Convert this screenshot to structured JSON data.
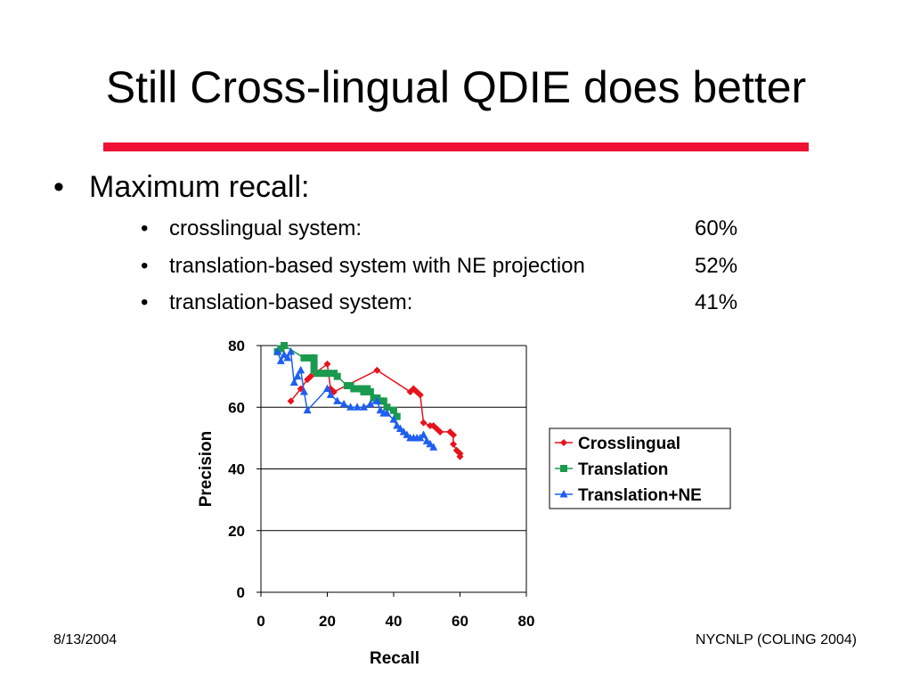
{
  "slide": {
    "title": "Still Cross-lingual QDIE does better",
    "bullet": "Maximum recall:",
    "subs": [
      {
        "label": "crosslingual system:",
        "value": "60%"
      },
      {
        "label": "translation-based system with NE projection",
        "value": "52%"
      },
      {
        "label": "translation-based system:",
        "value": "41%"
      }
    ],
    "footer_left": "8/13/2004",
    "footer_right": "NYCNLP (COLING 2004)",
    "bullet_char": "•"
  },
  "chart_data": {
    "type": "line",
    "xlabel": "Recall",
    "ylabel": "Precision",
    "xlim": [
      0,
      80
    ],
    "ylim": [
      0,
      80
    ],
    "xticks": [
      "0",
      "20",
      "40",
      "60",
      "80"
    ],
    "yticks": [
      "0",
      "20",
      "40",
      "60",
      "80"
    ],
    "grid": "horizontal",
    "legend": "right",
    "series": [
      {
        "name": "Crosslingual",
        "color": "#e8121c",
        "marker": "diamond",
        "points": [
          [
            9,
            62
          ],
          [
            12,
            66
          ],
          [
            14,
            69
          ],
          [
            15,
            70
          ],
          [
            20,
            74
          ],
          [
            21,
            66
          ],
          [
            22,
            65
          ],
          [
            35,
            72
          ],
          [
            45,
            65
          ],
          [
            46,
            66
          ],
          [
            47,
            65
          ],
          [
            48,
            64
          ],
          [
            49,
            55
          ],
          [
            51,
            54
          ],
          [
            52,
            54
          ],
          [
            53,
            53
          ],
          [
            54,
            52
          ],
          [
            57,
            52
          ],
          [
            58,
            51
          ],
          [
            58,
            48
          ],
          [
            59,
            46
          ],
          [
            60,
            45
          ],
          [
            60,
            44
          ]
        ]
      },
      {
        "name": "Translation",
        "color": "#1a9a4e",
        "marker": "square",
        "points": [
          [
            5,
            78
          ],
          [
            6,
            79
          ],
          [
            7,
            80
          ],
          [
            13,
            76
          ],
          [
            15,
            76
          ],
          [
            16,
            76
          ],
          [
            16,
            74
          ],
          [
            16,
            72
          ],
          [
            17,
            71
          ],
          [
            19,
            71
          ],
          [
            20,
            71
          ],
          [
            22,
            71
          ],
          [
            23,
            70
          ],
          [
            26,
            67
          ],
          [
            27,
            67
          ],
          [
            28,
            66
          ],
          [
            30,
            66
          ],
          [
            31,
            65
          ],
          [
            32,
            66
          ],
          [
            33,
            65
          ],
          [
            34,
            63
          ],
          [
            35,
            63
          ],
          [
            36,
            62
          ],
          [
            37,
            62
          ],
          [
            38,
            60
          ],
          [
            40,
            59
          ],
          [
            41,
            57
          ]
        ]
      },
      {
        "name": "Translation+NE",
        "color": "#1e5ef0",
        "marker": "triangle",
        "points": [
          [
            5,
            78
          ],
          [
            6,
            75
          ],
          [
            7,
            77
          ],
          [
            8,
            76
          ],
          [
            9,
            78
          ],
          [
            10,
            68
          ],
          [
            11,
            70
          ],
          [
            12,
            72
          ],
          [
            13,
            65
          ],
          [
            14,
            59
          ],
          [
            20,
            66
          ],
          [
            21,
            64
          ],
          [
            23,
            62
          ],
          [
            25,
            61
          ],
          [
            27,
            60
          ],
          [
            29,
            60
          ],
          [
            31,
            60
          ],
          [
            33,
            61
          ],
          [
            35,
            62
          ],
          [
            36,
            59
          ],
          [
            37,
            58
          ],
          [
            38,
            58
          ],
          [
            40,
            56
          ],
          [
            41,
            54
          ],
          [
            42,
            53
          ],
          [
            43,
            52
          ],
          [
            44,
            51
          ],
          [
            45,
            50
          ],
          [
            46,
            50
          ],
          [
            47,
            50
          ],
          [
            48,
            50
          ],
          [
            49,
            51
          ],
          [
            50,
            49
          ],
          [
            51,
            48
          ],
          [
            52,
            47
          ]
        ]
      }
    ]
  }
}
